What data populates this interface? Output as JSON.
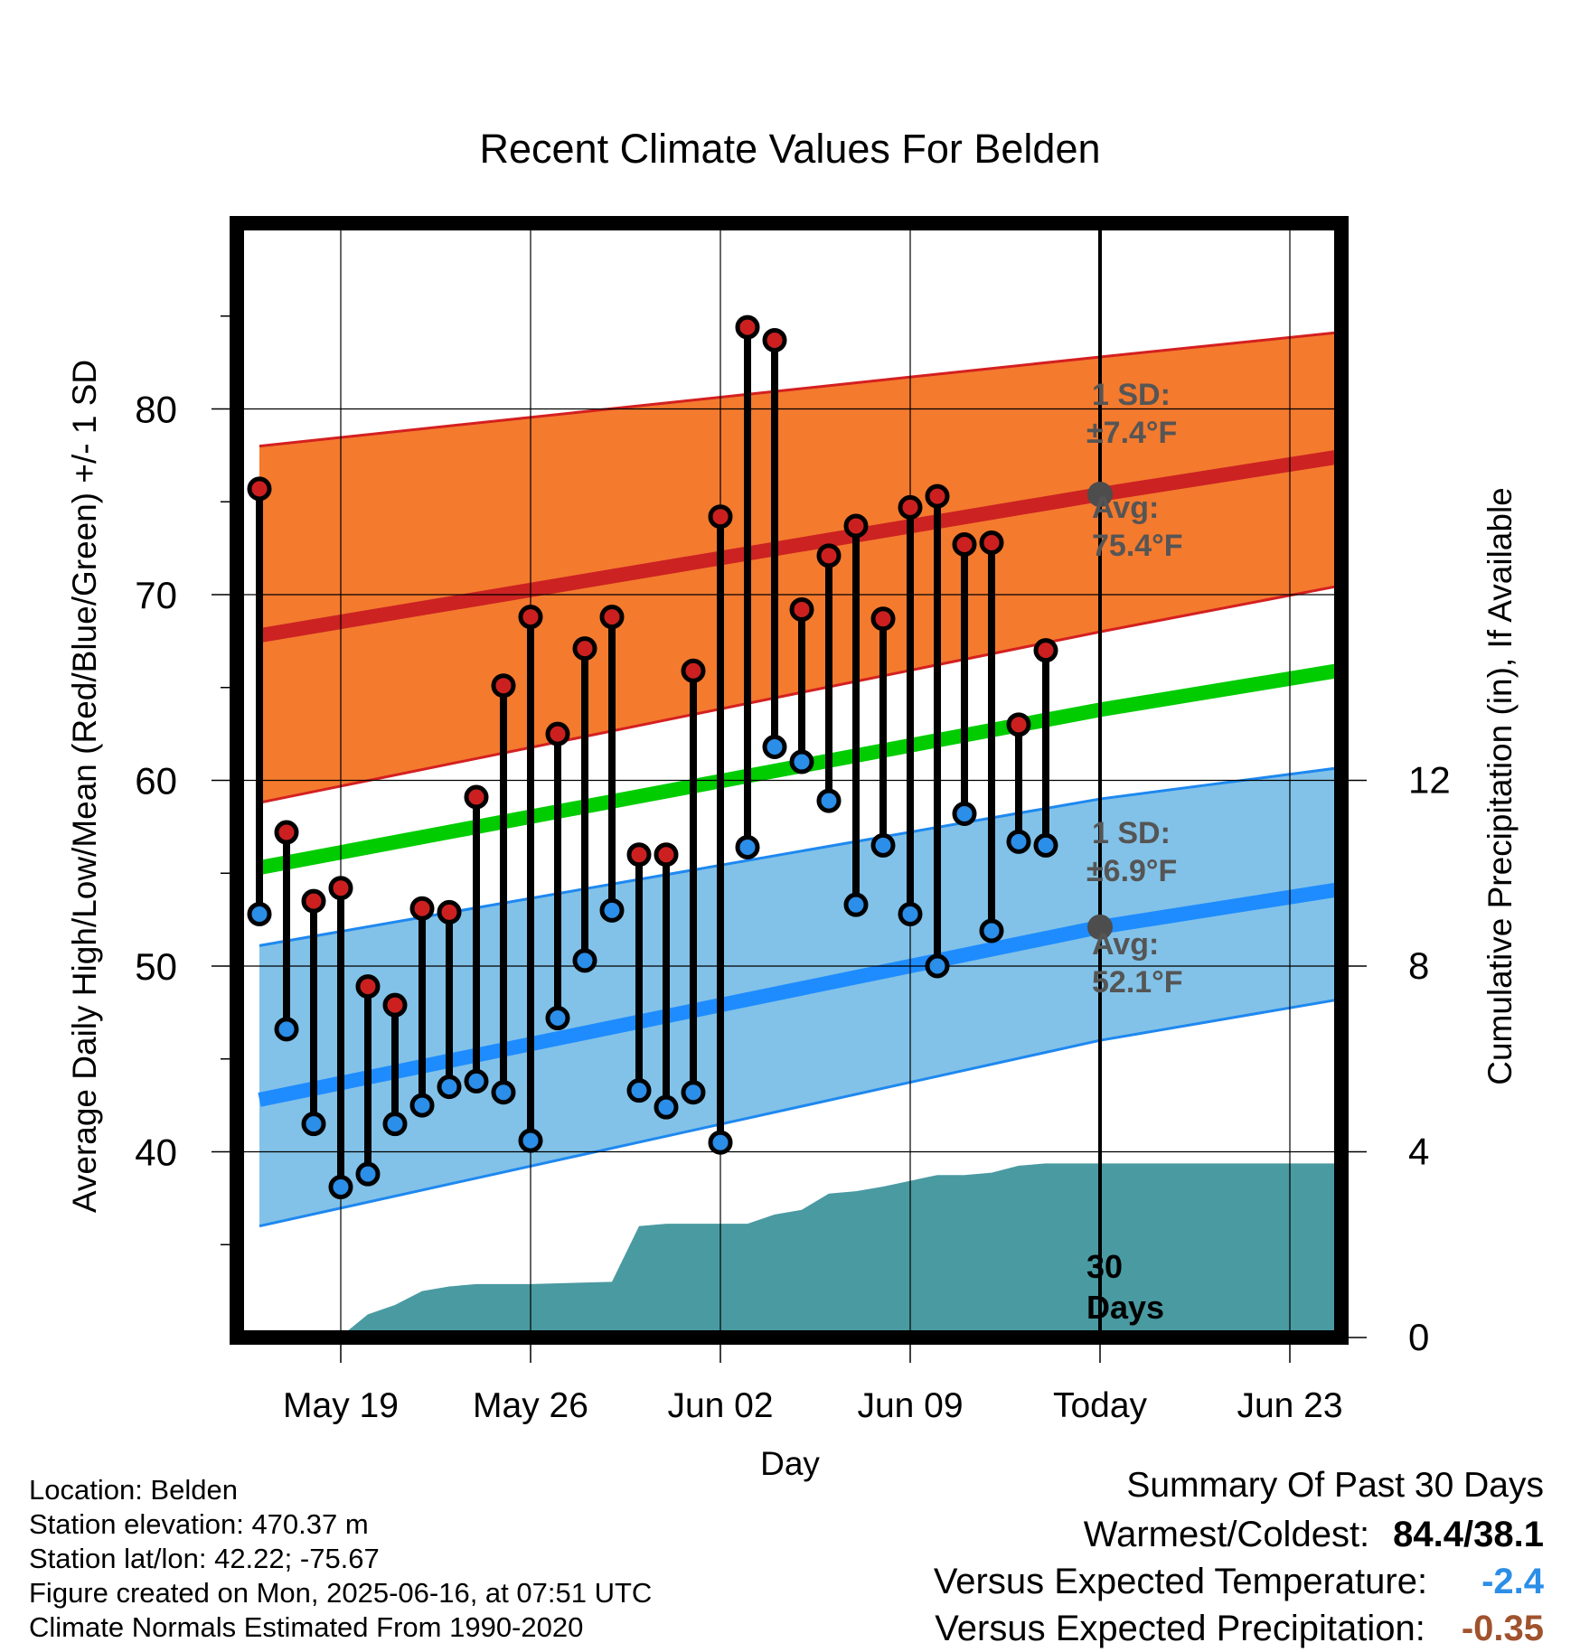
{
  "chart_data": {
    "type": "line",
    "title": "Recent Climate Values For Belden",
    "xlabel": "Day",
    "ylabel": "Average Daily High/Low/Mean (Red/Blue/Green) +/- 1 SD",
    "y2label": "Cumulative Precipitation (in), If Available",
    "ylim": [
      30,
      90
    ],
    "y2lim": [
      0,
      24
    ],
    "yticks": [
      40,
      50,
      60,
      70,
      80
    ],
    "y2ticks": [
      0,
      4,
      8,
      12
    ],
    "x_start": "2025-05-16",
    "x_end": "2025-06-26",
    "xticks": [
      {
        "date": "2025-05-19",
        "label": "May 19"
      },
      {
        "date": "2025-05-26",
        "label": "May 26"
      },
      {
        "date": "2025-06-02",
        "label": "Jun 02"
      },
      {
        "date": "2025-06-09",
        "label": "Jun 09"
      },
      {
        "date": "2025-06-16",
        "label": "Today"
      },
      {
        "date": "2025-06-23",
        "label": "Jun 23"
      }
    ],
    "today": "2025-06-16",
    "today_label": [
      "30",
      "Days"
    ],
    "normals": {
      "dates": [
        "2025-05-16",
        "2025-06-16",
        "2025-06-26"
      ],
      "high_mean": [
        67.8,
        75.4,
        77.7
      ],
      "high_upper": [
        78.0,
        82.8,
        84.3
      ],
      "high_lower": [
        58.8,
        68.0,
        70.8
      ],
      "low_mean": [
        42.8,
        52.1,
        54.4
      ],
      "low_upper": [
        51.1,
        59.0,
        60.9
      ],
      "low_lower": [
        36.0,
        46.0,
        48.5
      ],
      "daily_mean": [
        55.3,
        63.8,
        66.2
      ]
    },
    "annotations": {
      "high_sd": [
        "1 SD:",
        "±7.4°F"
      ],
      "high_avg": [
        "Avg:",
        "75.4°F"
      ],
      "low_sd": [
        "1 SD:",
        "±6.9°F"
      ],
      "low_avg": [
        "Avg:",
        "52.1°F"
      ]
    },
    "series": [
      {
        "name": "Daily High",
        "color": "#cc2020",
        "dates": [
          "2025-05-16",
          "2025-05-17",
          "2025-05-18",
          "2025-05-19",
          "2025-05-20",
          "2025-05-21",
          "2025-05-22",
          "2025-05-23",
          "2025-05-24",
          "2025-05-25",
          "2025-05-26",
          "2025-05-27",
          "2025-05-28",
          "2025-05-29",
          "2025-05-30",
          "2025-05-31",
          "2025-06-01",
          "2025-06-02",
          "2025-06-03",
          "2025-06-04",
          "2025-06-05",
          "2025-06-06",
          "2025-06-07",
          "2025-06-08",
          "2025-06-09",
          "2025-06-10",
          "2025-06-11",
          "2025-06-12",
          "2025-06-13",
          "2025-06-14",
          "2025-06-15"
        ],
        "values": [
          75.7,
          57.2,
          53.5,
          54.2,
          48.9,
          47.9,
          53.1,
          52.9,
          59.1,
          65.1,
          68.8,
          62.5,
          67.1,
          68.8,
          56.0,
          56.0,
          65.9,
          74.2,
          84.4,
          83.7,
          69.2,
          72.1,
          73.7,
          68.7,
          74.7,
          75.3,
          72.7,
          72.8,
          63.0,
          67.0,
          null
        ]
      },
      {
        "name": "Daily Low",
        "color": "#2b8ee8",
        "dates": [
          "2025-05-16",
          "2025-05-17",
          "2025-05-18",
          "2025-05-19",
          "2025-05-20",
          "2025-05-21",
          "2025-05-22",
          "2025-05-23",
          "2025-05-24",
          "2025-05-25",
          "2025-05-26",
          "2025-05-27",
          "2025-05-28",
          "2025-05-29",
          "2025-05-30",
          "2025-05-31",
          "2025-06-01",
          "2025-06-02",
          "2025-06-03",
          "2025-06-04",
          "2025-06-05",
          "2025-06-06",
          "2025-06-07",
          "2025-06-08",
          "2025-06-09",
          "2025-06-10",
          "2025-06-11",
          "2025-06-12",
          "2025-06-13",
          "2025-06-14",
          "2025-06-15"
        ],
        "values": [
          52.8,
          46.6,
          41.5,
          38.1,
          38.8,
          41.5,
          42.5,
          43.5,
          43.8,
          43.2,
          40.6,
          47.2,
          50.3,
          53.0,
          43.3,
          42.4,
          43.2,
          40.5,
          56.4,
          61.8,
          61.0,
          58.9,
          53.3,
          56.5,
          52.8,
          50.0,
          58.2,
          51.9,
          56.7,
          56.5,
          null
        ]
      },
      {
        "name": "Cumulative Precipitation",
        "color": "#4a9aa2",
        "dates": [
          "2025-05-16",
          "2025-05-18",
          "2025-05-19",
          "2025-05-20",
          "2025-05-21",
          "2025-05-22",
          "2025-05-23",
          "2025-05-24",
          "2025-05-26",
          "2025-05-29",
          "2025-05-30",
          "2025-05-31",
          "2025-06-03",
          "2025-06-04",
          "2025-06-05",
          "2025-06-06",
          "2025-06-07",
          "2025-06-08",
          "2025-06-10",
          "2025-06-11",
          "2025-06-12",
          "2025-06-13",
          "2025-06-14",
          "2025-06-15",
          "2025-06-26"
        ],
        "values": [
          0,
          0.02,
          0.02,
          0.5,
          0.7,
          1.0,
          1.1,
          1.15,
          1.15,
          1.2,
          2.4,
          2.45,
          2.45,
          2.65,
          2.75,
          3.1,
          3.15,
          3.25,
          3.5,
          3.5,
          3.55,
          3.7,
          3.75,
          3.75,
          3.75
        ]
      }
    ],
    "colors": {
      "high_band": "#f47a2e",
      "high_band_edge": "#d42020",
      "high_mean_line": "#cc2222",
      "low_band": "#82c2e8",
      "low_band_edge": "#1e88f0",
      "low_mean_line": "#1e8cff",
      "daily_mean_line": "#00cc00",
      "precip": "#4a9aa2",
      "annotation_text": "#555555",
      "today_marker": "#4d4d4d"
    }
  },
  "footer": {
    "location": "Location: Belden",
    "elevation": "Station elevation: 470.37 m",
    "latlon": "Station lat/lon: 42.22; -75.67",
    "created": "Figure created on Mon, 2025-06-16, at 07:51 UTC",
    "normals": "Climate Normals Estimated From 1990-2020"
  },
  "summary": {
    "title": "Summary Of Past 30 Days",
    "warm_cold_label": "Warmest/Coldest:",
    "warm_cold_value": "84.4/38.1",
    "temp_label": "Versus Expected Temperature:",
    "temp_value": "-2.4",
    "temp_color": "#2b8ee8",
    "precip_label": "Versus Expected Precipitation:",
    "precip_value": "-0.35",
    "precip_color": "#a0522d"
  }
}
